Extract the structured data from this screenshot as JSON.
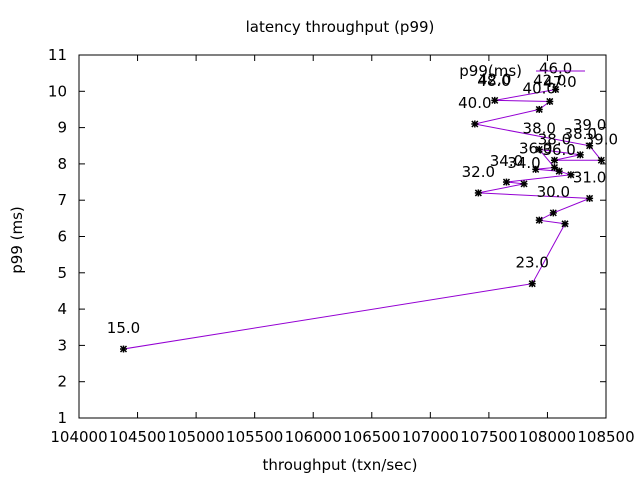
{
  "chart_data": {
    "type": "line",
    "title": "latency throughput (p99)",
    "xlabel": "throughput (txn/sec)",
    "ylabel": "p99 (ms)",
    "xlim": [
      104000,
      108500
    ],
    "ylim": [
      1,
      11
    ],
    "x_ticks": [
      104000,
      104500,
      105000,
      105500,
      106000,
      106500,
      107000,
      107500,
      108000,
      108500
    ],
    "y_ticks": [
      1,
      2,
      3,
      4,
      5,
      6,
      7,
      8,
      9,
      10,
      11
    ],
    "grid": false,
    "legend_position": "top-right",
    "series": [
      {
        "name": "p99(ms)",
        "color": "#9400d3",
        "marker_color": "#000000",
        "points": [
          {
            "x": 104380,
            "y": 2.9,
            "label": "15.0"
          },
          {
            "x": 107870,
            "y": 4.7,
            "label": "23.0"
          },
          {
            "x": 108150,
            "y": 6.35,
            "label": ""
          },
          {
            "x": 107930,
            "y": 6.45,
            "label": ""
          },
          {
            "x": 108050,
            "y": 6.65,
            "label": "30.0"
          },
          {
            "x": 108360,
            "y": 7.05,
            "label": "31.0"
          },
          {
            "x": 107410,
            "y": 7.2,
            "label": "32.0"
          },
          {
            "x": 107800,
            "y": 7.45,
            "label": "34.0"
          },
          {
            "x": 107650,
            "y": 7.5,
            "label": "34.0"
          },
          {
            "x": 108200,
            "y": 7.7,
            "label": ""
          },
          {
            "x": 108100,
            "y": 7.8,
            "label": "36.0"
          },
          {
            "x": 107900,
            "y": 7.85,
            "label": "36.0"
          },
          {
            "x": 108060,
            "y": 7.9,
            "label": ""
          },
          {
            "x": 107930,
            "y": 8.4,
            "label": "38.0"
          },
          {
            "x": 108280,
            "y": 8.25,
            "label": "38.0"
          },
          {
            "x": 108060,
            "y": 8.1,
            "label": "38.0"
          },
          {
            "x": 108460,
            "y": 8.1,
            "label": "39.0"
          },
          {
            "x": 108360,
            "y": 8.5,
            "label": "39.0"
          },
          {
            "x": 107380,
            "y": 9.1,
            "label": "40.0"
          },
          {
            "x": 107930,
            "y": 9.5,
            "label": "40.0"
          },
          {
            "x": 108020,
            "y": 9.72,
            "label": "42.0"
          },
          {
            "x": 107550,
            "y": 9.75,
            "label": "42.0"
          },
          {
            "x": 108070,
            "y": 10.05,
            "label": "46.0"
          }
        ]
      }
    ],
    "extra_labels": [
      "47.0",
      "48.0"
    ]
  }
}
